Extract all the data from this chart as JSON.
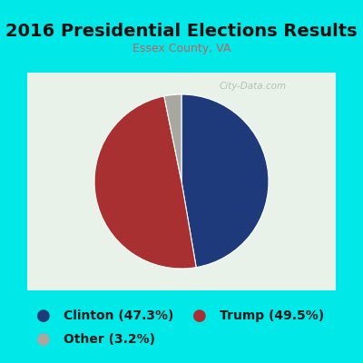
{
  "title": "2016 Presidential Elections Results",
  "subtitle": "Essex County, VA",
  "slices": [
    47.3,
    49.5,
    3.2
  ],
  "labels": [
    "Clinton",
    "Trump",
    "Other"
  ],
  "colors": [
    "#1e3a7a",
    "#a83030",
    "#a8a8a0"
  ],
  "legend_dot_colors": [
    "#1e3a7a",
    "#a83030",
    "#a8a8a0"
  ],
  "background_outer": "#00e8e8",
  "background_inner": "#e8f2e8",
  "title_color": "#111111",
  "subtitle_color": "#c06060",
  "startangle": 90,
  "watermark": "City-Data.com",
  "title_fontsize": 14,
  "subtitle_fontsize": 9,
  "legend_fontsize": 10
}
